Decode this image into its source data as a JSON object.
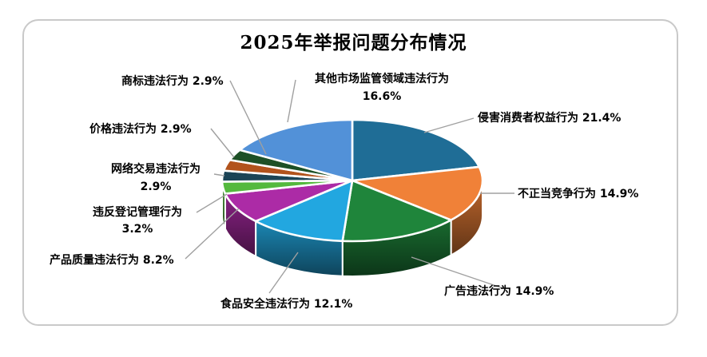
{
  "chart_data": {
    "type": "pie",
    "style": "3d-exploded-look",
    "title": "2025年举报问题分布情况",
    "unit": "%",
    "legend_position": "none",
    "labels": "external-callouts-with-leader-lines",
    "leader_color": "#a0a0a0",
    "slices": [
      {
        "label": "侵害消费者权益行为",
        "value": 21.4,
        "pct_label": "21.4%",
        "color": "#1f6d96"
      },
      {
        "label": "不正当竞争行为",
        "value": 14.9,
        "pct_label": "14.9%",
        "color": "#f08138"
      },
      {
        "label": "广告违法行为",
        "value": 14.9,
        "pct_label": "14.9%",
        "color": "#1f853b"
      },
      {
        "label": "食品安全违法行为",
        "value": 12.1,
        "pct_label": "12.1%",
        "color": "#22a7e0"
      },
      {
        "label": "产品质量违法行为",
        "value": 8.2,
        "pct_label": "8.2%",
        "color": "#ac2ba6"
      },
      {
        "label": "违反登记管理行为",
        "value": 3.2,
        "pct_label": "3.2%",
        "color": "#54b93e"
      },
      {
        "label": "网络交易违法行为",
        "value": 2.9,
        "pct_label": "2.9%",
        "color": "#1b4456"
      },
      {
        "label": "价格违法行为",
        "value": 2.9,
        "pct_label": "2.9%",
        "color": "#b2531c"
      },
      {
        "label": "商标违法行为",
        "value": 2.9,
        "pct_label": "2.9%",
        "color": "#1d5026"
      },
      {
        "label": "其他市场监管领域违法行为",
        "value": 16.6,
        "pct_label": "16.6%",
        "color": "#5291d8"
      }
    ]
  }
}
